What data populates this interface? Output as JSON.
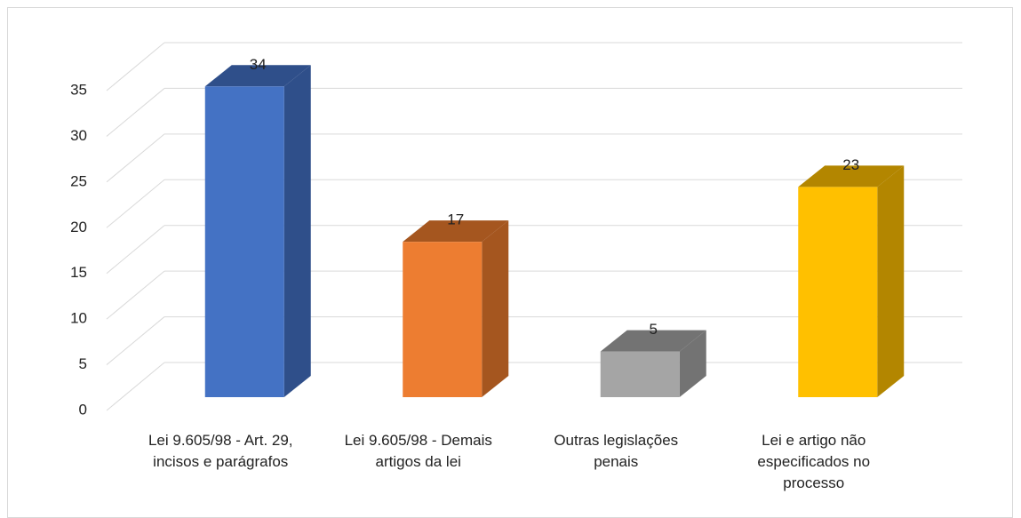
{
  "chart_data": {
    "type": "bar3d",
    "categories": [
      "Lei 9.605/98 - Art. 29, incisos e parágrafos",
      "Lei 9.605/98 - Demais artigos da lei",
      "Outras legislações penais",
      "Lei e artigo não especificados no processo"
    ],
    "values": [
      34,
      17,
      5,
      23
    ],
    "colors": [
      "#4472c4",
      "#ed7d31",
      "#a5a5a5",
      "#ffc000"
    ],
    "side_colors": [
      "#2f4f8a",
      "#a5561f",
      "#737373",
      "#b38600"
    ],
    "ylim": [
      0,
      35
    ],
    "yticks": [
      0,
      5,
      10,
      15,
      20,
      25,
      30,
      35
    ],
    "grid": true
  }
}
